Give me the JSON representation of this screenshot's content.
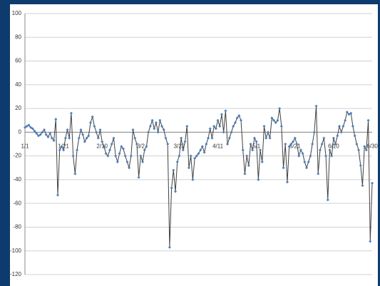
{
  "chart_data": {
    "type": "line",
    "categories": [
      "1/1",
      null,
      null,
      null,
      null,
      null,
      null,
      null,
      null,
      null,
      null,
      null,
      null,
      null,
      null,
      null,
      null,
      null,
      null,
      null,
      "1/21",
      null,
      null,
      null,
      null,
      null,
      null,
      null,
      null,
      null,
      null,
      null,
      null,
      null,
      null,
      null,
      null,
      null,
      null,
      null,
      "2/10",
      null,
      null,
      null,
      null,
      null,
      null,
      null,
      null,
      null,
      null,
      null,
      null,
      null,
      null,
      null,
      null,
      null,
      null,
      null,
      "3/2",
      null,
      null,
      null,
      null,
      null,
      null,
      null,
      null,
      null,
      null,
      null,
      null,
      null,
      null,
      null,
      null,
      null,
      null,
      null,
      "3/22",
      null,
      null,
      null,
      null,
      null,
      null,
      null,
      null,
      null,
      null,
      null,
      null,
      null,
      null,
      null,
      null,
      null,
      null,
      null,
      "4/11",
      null,
      null,
      null,
      null,
      null,
      null,
      null,
      null,
      null,
      null,
      null,
      null,
      null,
      null,
      null,
      null,
      null,
      null,
      null,
      "5/1",
      null,
      null,
      null,
      null,
      null,
      null,
      null,
      null,
      null,
      null,
      null,
      null,
      null,
      null,
      null,
      null,
      null,
      null,
      null,
      "5/21",
      null,
      null,
      null,
      null,
      null,
      null,
      null,
      null,
      null,
      null,
      null,
      null,
      null,
      null,
      null,
      null,
      null,
      null,
      null,
      "6/10",
      null,
      null,
      null,
      null,
      null,
      null,
      null,
      null,
      null,
      null,
      null,
      null,
      null,
      null,
      null,
      null,
      null,
      null,
      null,
      "6/30"
    ],
    "values": [
      4,
      5,
      6,
      4,
      3,
      1,
      -1,
      -3,
      -2,
      0,
      2,
      -2,
      -4,
      -1,
      -5,
      -7,
      11,
      -53,
      -15,
      -12,
      -15,
      -5,
      2,
      -5,
      16,
      -20,
      -35,
      -15,
      -5,
      2,
      -2,
      -8,
      -5,
      -3,
      8,
      13,
      5,
      0,
      -5,
      2,
      -8,
      -12,
      -18,
      -20,
      -15,
      -10,
      -5,
      -20,
      -25,
      -18,
      -12,
      -14,
      -20,
      -25,
      -30,
      -20,
      2,
      -5,
      -10,
      -38,
      -20,
      -25,
      -15,
      -12,
      0,
      5,
      10,
      3,
      8,
      0,
      10,
      5,
      2,
      -5,
      -10,
      -97,
      -47,
      -32,
      -50,
      -25,
      -20,
      -5,
      -15,
      -8,
      5,
      -30,
      -20,
      -40,
      -22,
      -20,
      -18,
      -15,
      -12,
      -17,
      -10,
      -5,
      3,
      -5,
      5,
      3,
      10,
      5,
      15,
      0,
      18,
      -10,
      -5,
      0,
      5,
      8,
      12,
      14,
      10,
      -15,
      -35,
      -20,
      -28,
      -10,
      -15,
      -5,
      -8,
      -40,
      -15,
      -25,
      5,
      -5,
      0,
      -5,
      12,
      10,
      8,
      10,
      20,
      5,
      -30,
      -10,
      -42,
      -12,
      -10,
      -8,
      -5,
      -10,
      -20,
      -15,
      -18,
      -25,
      -30,
      -25,
      -20,
      -10,
      0,
      22,
      -35,
      -15,
      -10,
      -5,
      -20,
      -57,
      -15,
      -20,
      -5,
      -10,
      -3,
      5,
      0,
      5,
      10,
      17,
      15,
      16,
      5,
      -3,
      -10,
      -15,
      -28,
      -45,
      -12,
      -15,
      10,
      -92,
      -43
    ],
    "line_color": "#404040",
    "marker_color": "#4a7ebb",
    "ylim": [
      -120,
      100
    ],
    "yticks": [
      -120,
      -100,
      -80,
      -60,
      -40,
      -20,
      0,
      20,
      40,
      60,
      80,
      100
    ],
    "grid": true
  }
}
